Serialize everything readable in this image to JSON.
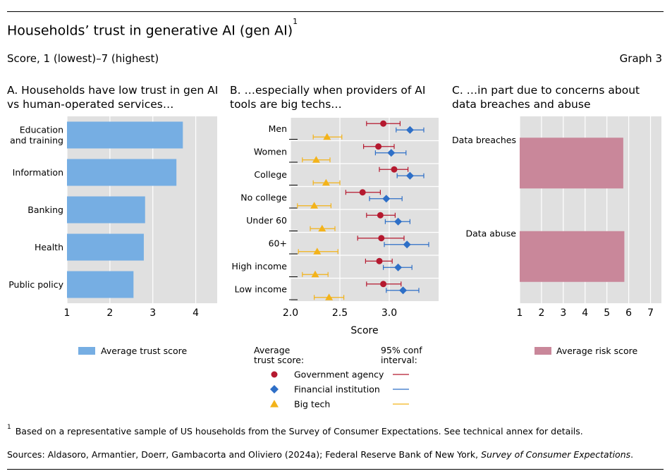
{
  "header": {
    "title": "Households’ trust in generative AI (gen AI)",
    "title_sup": "1",
    "subtitle": "Score, 1 (lowest)–7 (highest)",
    "graph_number": "Graph 3"
  },
  "colors": {
    "blue_bar": "#76aee3",
    "pink_bar": "#c9879a",
    "government": "#b5192f",
    "financial": "#2e6fc7",
    "bigtech": "#f3b31a",
    "panel_bg": "#e0e0e0"
  },
  "chart_data": [
    {
      "type": "bar",
      "orientation": "horizontal",
      "title": "A. Households have low trust in gen AI vs human-operated services…",
      "categories": [
        "Education and training",
        "Information",
        "Banking",
        "Health",
        "Public policy"
      ],
      "category_lines": [
        [
          "Education",
          "and training"
        ],
        [
          "Information"
        ],
        [
          "Banking"
        ],
        [
          "Health"
        ],
        [
          "Public policy"
        ]
      ],
      "values": [
        3.7,
        3.55,
        2.82,
        2.79,
        2.55
      ],
      "xlim": [
        1,
        4.5
      ],
      "xticks": [
        "1",
        "2",
        "3",
        "4"
      ],
      "legend": "Average trust score"
    },
    {
      "type": "scatter",
      "title": "B. …especially when providers of AI tools are big techs…",
      "categories": [
        "Men",
        "Women",
        "College",
        "No college",
        "Under 60",
        "60+",
        "High income",
        "Low income"
      ],
      "xlabel": "Score",
      "xlim": [
        2.0,
        3.5
      ],
      "xticks": [
        "2.0",
        "2.5",
        "3.0"
      ],
      "series": [
        {
          "name": "Government agency",
          "values": [
            2.94,
            2.89,
            3.05,
            2.73,
            2.91,
            2.92,
            2.9,
            2.94
          ],
          "ci_low": [
            2.77,
            2.74,
            2.9,
            2.56,
            2.77,
            2.68,
            2.76,
            2.77
          ],
          "ci_high": [
            3.11,
            3.05,
            3.19,
            2.91,
            3.06,
            3.15,
            3.03,
            3.12
          ]
        },
        {
          "name": "Financial institution",
          "values": [
            3.21,
            3.02,
            3.21,
            2.97,
            3.09,
            3.18,
            3.09,
            3.14
          ],
          "ci_low": [
            3.07,
            2.86,
            3.08,
            2.8,
            2.96,
            2.95,
            2.94,
            2.97
          ],
          "ci_high": [
            3.35,
            3.17,
            3.35,
            3.13,
            3.21,
            3.4,
            3.23,
            3.3
          ]
        },
        {
          "name": "Big tech",
          "values": [
            2.37,
            2.26,
            2.36,
            2.24,
            2.32,
            2.27,
            2.25,
            2.39
          ],
          "ci_low": [
            2.23,
            2.12,
            2.23,
            2.07,
            2.2,
            2.08,
            2.12,
            2.24
          ],
          "ci_high": [
            2.52,
            2.4,
            2.5,
            2.41,
            2.45,
            2.48,
            2.38,
            2.54
          ]
        }
      ],
      "legend_header_left": [
        "Average",
        "trust score:"
      ],
      "legend_header_right": [
        "95% conf",
        "interval:"
      ]
    },
    {
      "type": "bar",
      "orientation": "horizontal",
      "title": "C. …in part due to concerns about data breaches and abuse",
      "categories": [
        "Data breaches",
        "Data abuse"
      ],
      "values": [
        5.75,
        5.8
      ],
      "xlim": [
        1,
        7.5
      ],
      "xticks": [
        "1",
        "2",
        "3",
        "4",
        "5",
        "6",
        "7"
      ],
      "legend": "Average risk score"
    }
  ],
  "footnote": {
    "marker": "1",
    "text": "Based on a representative sample of US households from the Survey of Consumer Expectations. See technical annex for details."
  },
  "sources": {
    "prefix": "Sources: Aldasoro, Armantier, Doerr, Gambacorta and Oliviero (2024a); Federal Reserve Bank of New York, ",
    "italic": "Survey of Consumer Expectations",
    "suffix": "."
  }
}
